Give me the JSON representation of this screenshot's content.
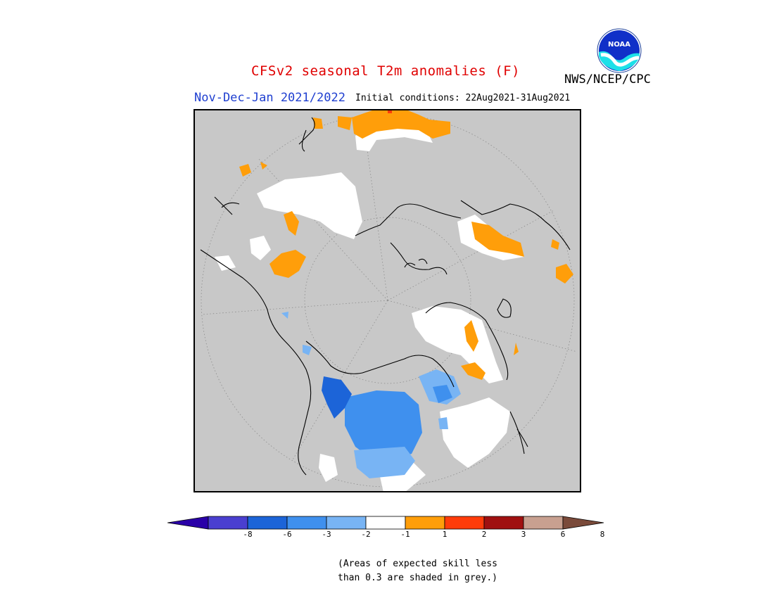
{
  "title": "CFSv2 seasonal T2m anomalies (F)",
  "agency": "NWS/NCEP/CPC",
  "logo_text": "NOAA",
  "period": "Nov-Dec-Jan 2021/2022",
  "initial_conditions": "Initial conditions: 22Aug2021-31Aug2021",
  "note_line1": "(Areas of expected skill less",
  "note_line2": "than 0.3 are shaded in grey.)",
  "colors": {
    "skill_grey": "#c8c8c8",
    "title_red": "#e00000",
    "period_blue": "#1f3fd0"
  },
  "legend": {
    "bins": [
      {
        "color": "#2a00a8"
      },
      {
        "color": "#4a3fd0"
      },
      {
        "color": "#1c64d8"
      },
      {
        "color": "#3f90ee"
      },
      {
        "color": "#78b4f4"
      },
      {
        "color": "#ffffff"
      },
      {
        "color": "#ff9e0a"
      },
      {
        "color": "#ff3c0a"
      },
      {
        "color": "#a01010"
      },
      {
        "color": "#c8a090"
      },
      {
        "color": "#7a4a3a"
      }
    ],
    "ticks": [
      "-8",
      "-6",
      "-3",
      "-2",
      "-1",
      "1",
      "2",
      "3",
      "6",
      "8"
    ]
  }
}
